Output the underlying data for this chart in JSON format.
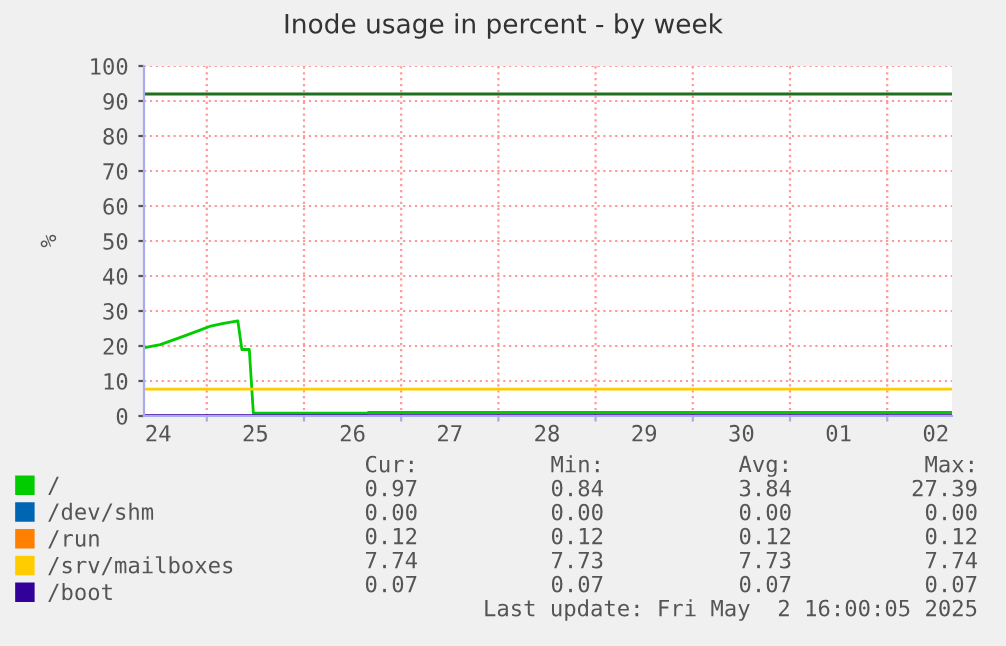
{
  "chart_data": {
    "type": "line",
    "title": "Inode usage in percent - by week",
    "ylabel": "%",
    "xlim": [
      "2025-04-24T08:30",
      "2025-05-02T16:00"
    ],
    "xticks": [
      {
        "value": "2025-04-24T12:00",
        "label": "24"
      },
      {
        "value": "2025-04-25T00:00",
        "label": null
      },
      {
        "value": "2025-04-25T12:00",
        "label": "25"
      },
      {
        "value": "2025-04-26T00:00",
        "label": null
      },
      {
        "value": "2025-04-26T12:00",
        "label": "26"
      },
      {
        "value": "2025-04-27T00:00",
        "label": null
      },
      {
        "value": "2025-04-27T12:00",
        "label": "27"
      },
      {
        "value": "2025-04-28T00:00",
        "label": null
      },
      {
        "value": "2025-04-28T12:00",
        "label": "28"
      },
      {
        "value": "2025-04-29T00:00",
        "label": null
      },
      {
        "value": "2025-04-29T12:00",
        "label": "29"
      },
      {
        "value": "2025-04-30T00:00",
        "label": null
      },
      {
        "value": "2025-04-30T12:00",
        "label": "30"
      },
      {
        "value": "2025-05-01T00:00",
        "label": null
      },
      {
        "value": "2025-05-01T12:00",
        "label": "01"
      },
      {
        "value": "2025-05-02T00:00",
        "label": null
      },
      {
        "value": "2025-05-02T12:00",
        "label": "02"
      }
    ],
    "ylim": [
      0,
      100
    ],
    "yticks": [
      0,
      10,
      20,
      30,
      40,
      50,
      60,
      70,
      80,
      90,
      100
    ],
    "grid": true,
    "legend": "bottom",
    "line_style": "solid",
    "marker": "none",
    "ref_lines": [
      {
        "axis": "y",
        "value": 92,
        "color": "#1f6f1f"
      }
    ],
    "series": [
      {
        "name": "/",
        "color": "#00cc00",
        "x": [
          "2025-04-24T09:00",
          "2025-04-24T12:30",
          "2025-04-24T16:40",
          "2025-04-24T22:30",
          "2025-04-25T01:00",
          "2025-04-25T03:30",
          "2025-04-25T07:40",
          "2025-04-25T08:40",
          "2025-04-25T10:30",
          "2025-04-25T11:30",
          "2025-04-26T15:40",
          "2025-04-26T15:50",
          "2025-05-02T16:00"
        ],
        "values": [
          19.6,
          20.4,
          22.1,
          24.6,
          25.7,
          26.3,
          27.2,
          19.0,
          19.0,
          0.8,
          0.8,
          1.0,
          1.0
        ]
      },
      {
        "name": "/dev/shm",
        "color": "#0066b3"
      },
      {
        "name": "/run",
        "color": "#ff8000"
      },
      {
        "name": "/srv/mailboxes",
        "color": "#ffcc00",
        "x": [
          "2025-04-24T09:00",
          "2025-05-02T16:00"
        ],
        "values": [
          7.7,
          7.7
        ]
      },
      {
        "name": "/boot",
        "color": "#330099",
        "x": [
          "2025-04-24T09:00",
          "2025-05-02T16:00"
        ],
        "values": [
          0.1,
          0.1
        ]
      }
    ],
    "annotations": [
      "Cur:",
      "Min:",
      "Avg:",
      "Max:",
      "0.97",
      "0.84",
      "3.84",
      "27.39",
      "0.00",
      "0.00",
      "0.00",
      "0.00",
      "0.12",
      "0.12",
      "0.12",
      "0.12",
      "7.74",
      "7.73",
      "7.73",
      "7.74",
      "0.07",
      "0.07",
      "0.07",
      "0.07",
      "Last update: Fri May  2 16:00:05 2025"
    ]
  }
}
